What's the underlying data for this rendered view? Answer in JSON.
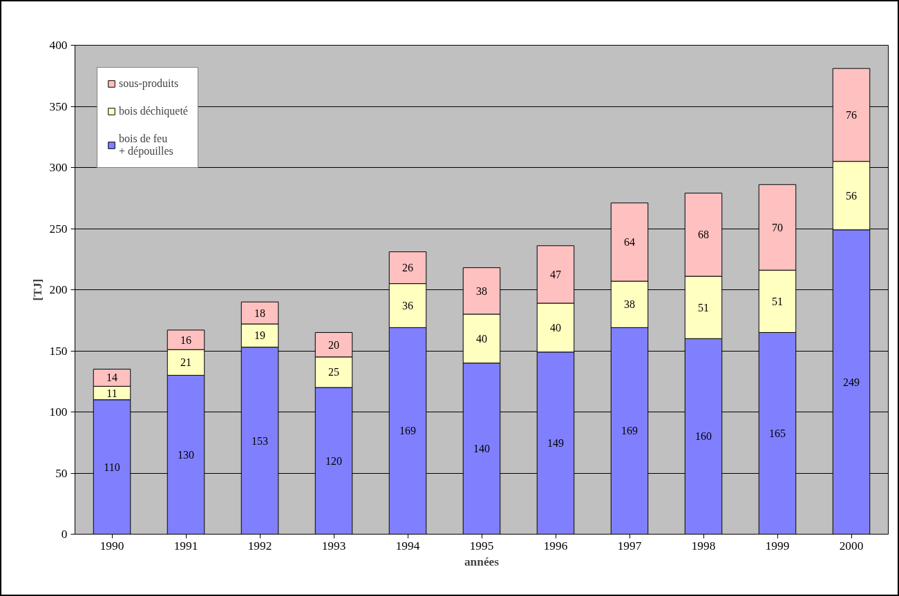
{
  "chart_data": {
    "type": "bar",
    "stacked": true,
    "xlabel": "années",
    "ylabel": "[TJ]",
    "categories": [
      "1990",
      "1991",
      "1992",
      "1993",
      "1994",
      "1995",
      "1996",
      "1997",
      "1998",
      "1999",
      "2000"
    ],
    "series": [
      {
        "name": "bois de feu\n+ dépouilles",
        "color": "#8080ff",
        "values": [
          110,
          130,
          153,
          120,
          169,
          140,
          149,
          169,
          160,
          165,
          249
        ]
      },
      {
        "name": "bois déchiqueté",
        "color": "#ffffc0",
        "values": [
          11,
          21,
          19,
          25,
          36,
          40,
          40,
          38,
          51,
          51,
          56
        ]
      },
      {
        "name": "sous-produits",
        "color": "#ffc0c0",
        "values": [
          14,
          16,
          18,
          20,
          26,
          38,
          47,
          64,
          68,
          70,
          76
        ]
      }
    ],
    "ylim": [
      0,
      400
    ],
    "yticks": [
      0,
      50,
      100,
      150,
      200,
      250,
      300,
      350,
      400
    ],
    "grid": "y",
    "legend": "top left",
    "data_labels": true
  }
}
